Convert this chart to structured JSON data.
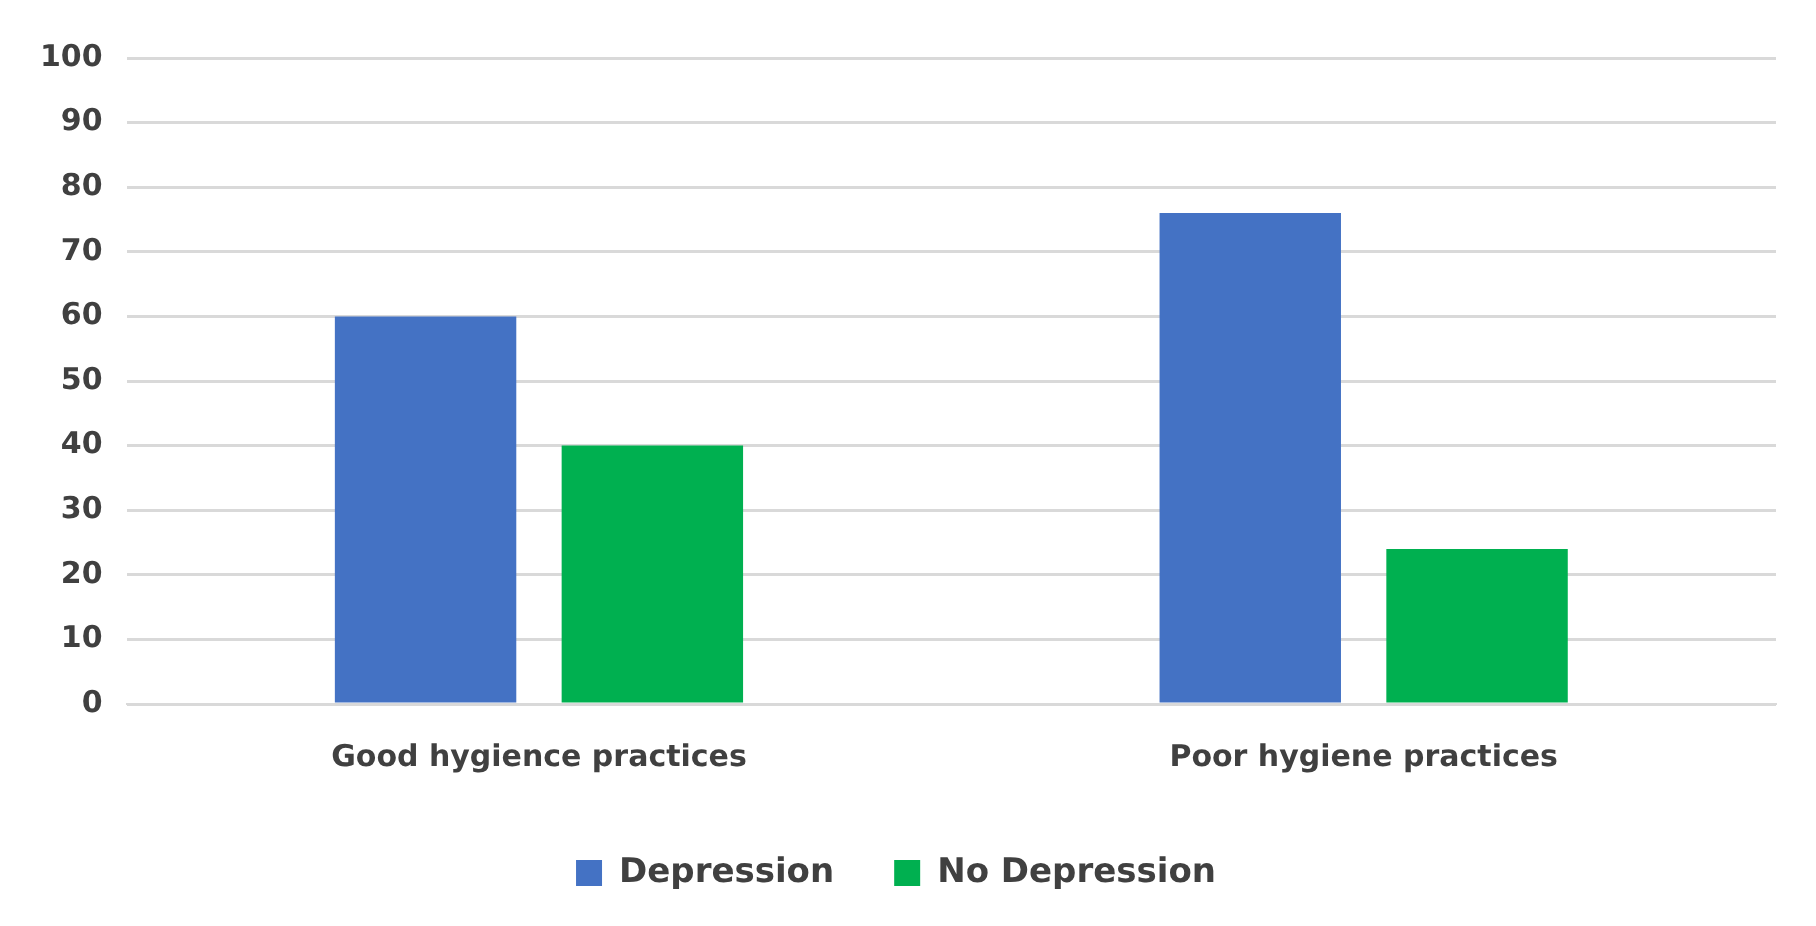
{
  "chart_data": {
    "type": "bar",
    "categories": [
      "Good hygience practices",
      "Poor hygiene practices"
    ],
    "series": [
      {
        "name": "Depression",
        "color": "#4472c4",
        "values": [
          60,
          76
        ]
      },
      {
        "name": "No Depression",
        "color": "#00b050",
        "values": [
          40,
          24
        ]
      }
    ],
    "ylim": [
      0,
      100
    ],
    "yticks": [
      0,
      10,
      20,
      30,
      40,
      50,
      60,
      70,
      80,
      90,
      100
    ],
    "grid": "y",
    "legend": "bottom"
  }
}
